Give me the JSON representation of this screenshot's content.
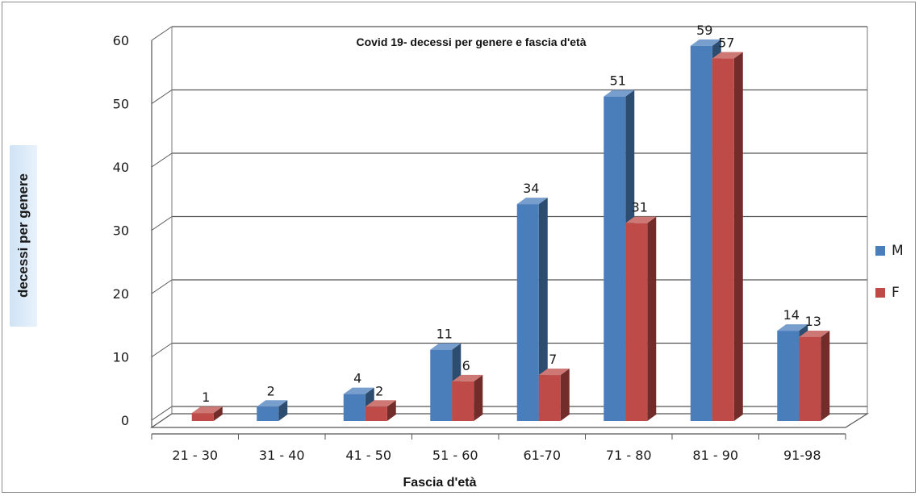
{
  "chart_data": {
    "type": "bar",
    "title": "Covid 19- decessi per genere e fascia d'età",
    "xlabel": "Fascia d'età",
    "ylabel": "decessi per genere",
    "categories": [
      "21 - 30",
      "31 - 40",
      "41 - 50",
      "51 - 60",
      "61-70",
      "71 - 80",
      "81 - 90",
      "91-98"
    ],
    "series": [
      {
        "name": "M",
        "color": "#4a7ebb",
        "values": [
          0,
          2,
          4,
          11,
          34,
          51,
          59,
          14
        ]
      },
      {
        "name": "F",
        "color": "#be4b48",
        "values": [
          1,
          0,
          2,
          6,
          7,
          31,
          57,
          13
        ]
      }
    ],
    "data_labels": {
      "M": [
        "",
        "2",
        "4",
        "11",
        "34",
        "51",
        "59",
        "14"
      ],
      "F": [
        "1",
        "",
        "2",
        "6",
        "7",
        "31",
        "57",
        "13"
      ]
    },
    "yticks": [
      "0",
      "10",
      "20",
      "30",
      "40",
      "50",
      "60"
    ],
    "ylim": [
      0,
      60
    ],
    "grid": true,
    "legend": "right",
    "style": "3d-clustered-column"
  }
}
